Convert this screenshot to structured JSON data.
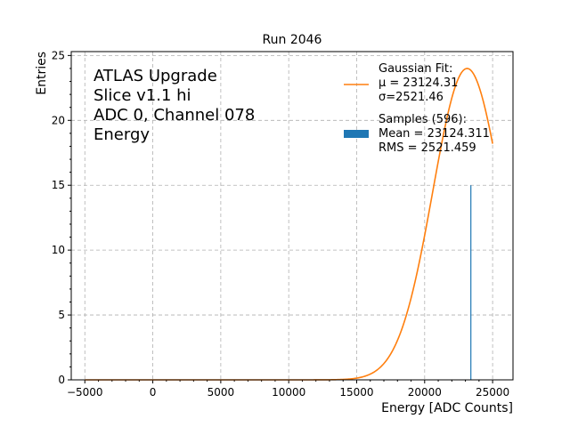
{
  "chart_data": {
    "type": "line",
    "title": "Run 2046",
    "xlabel": "Energy [ADC Counts]",
    "ylabel": "Entries",
    "xlim": [
      -6000,
      26500
    ],
    "ylim": [
      0,
      25.3
    ],
    "grid": true,
    "xticks": [
      -5000,
      0,
      5000,
      10000,
      15000,
      20000,
      25000
    ],
    "yticks": [
      0,
      5,
      10,
      15,
      20,
      25
    ],
    "annotation": [
      "ATLAS Upgrade",
      "Slice v1.1 hi",
      "ADC 0, Channel 078",
      "Energy"
    ],
    "legend_position": "top-right",
    "series": [
      {
        "name": "Gaussian Fit",
        "kind": "line",
        "color": "#ff7f0e",
        "legend_lines": [
          "Gaussian Fit:",
          " μ = 23124.31",
          " σ=2521.46"
        ],
        "mu": 23124.31,
        "sigma": 2521.46,
        "amplitude": 24.0,
        "x_range": [
          -5000,
          25000
        ]
      },
      {
        "name": "Samples (596)",
        "kind": "histogram",
        "color": "#1f77b4",
        "legend_lines": [
          "Samples (596):",
          " Mean = 23124.311",
          " RMS = 2521.459"
        ],
        "bins": [
          {
            "x": 23400,
            "value": 15
          }
        ]
      }
    ]
  }
}
